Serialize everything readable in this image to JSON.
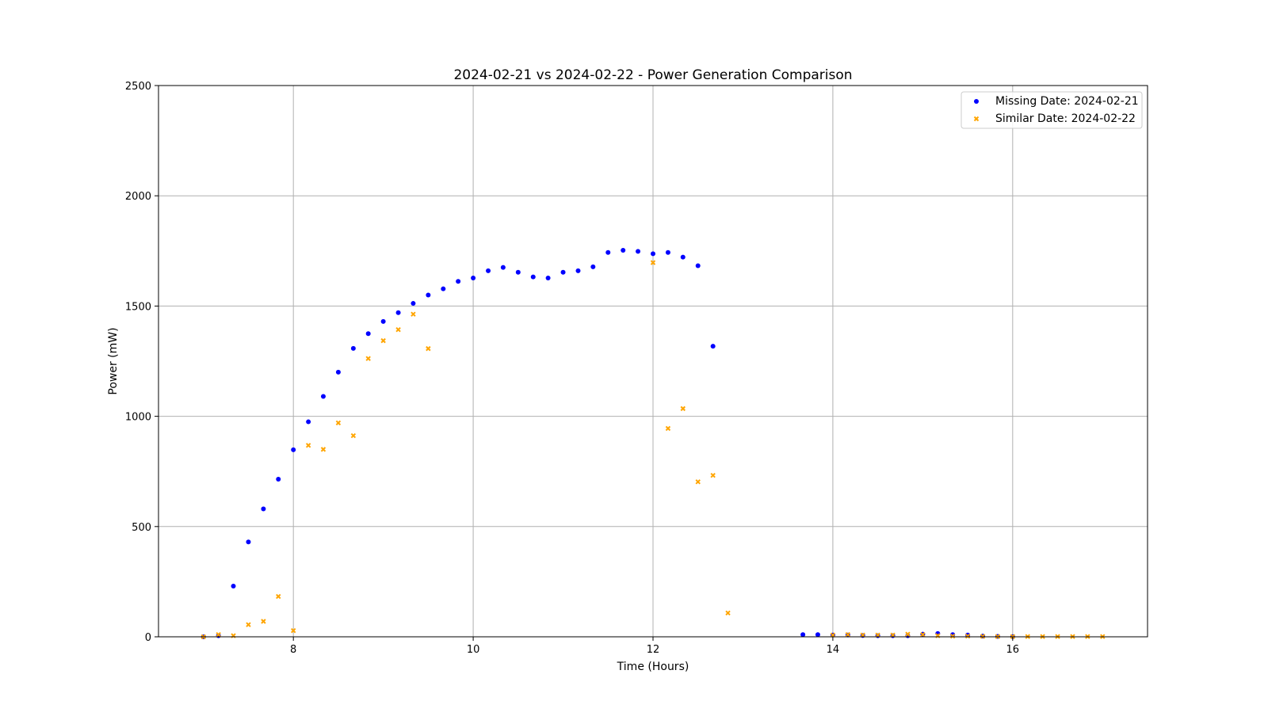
{
  "chart_data": {
    "type": "scatter",
    "title": "2024-02-21 vs 2024-02-22 - Power Generation Comparison",
    "xlabel": "Time (Hours)",
    "ylabel": "Power (mW)",
    "xlim": [
      6.5,
      17.5
    ],
    "ylim": [
      0,
      2500
    ],
    "xticks": [
      8,
      10,
      12,
      14,
      16
    ],
    "yticks": [
      0,
      500,
      1000,
      1500,
      2000,
      2500
    ],
    "grid": true,
    "legend_position": "top-right",
    "series": [
      {
        "name": "Missing Date: 2024-02-21",
        "color": "#0000ff",
        "marker": "circle",
        "x": [
          7.0,
          7.167,
          7.333,
          7.5,
          7.667,
          7.833,
          8.0,
          8.167,
          8.333,
          8.5,
          8.667,
          8.833,
          9.0,
          9.167,
          9.333,
          9.5,
          9.667,
          9.833,
          10.0,
          10.167,
          10.333,
          10.5,
          10.667,
          10.833,
          11.0,
          11.167,
          11.333,
          11.5,
          11.667,
          11.833,
          12.0,
          12.167,
          12.333,
          12.5,
          12.667,
          13.667,
          13.833,
          14.0,
          14.167,
          14.333,
          14.5,
          14.667,
          14.833,
          15.0,
          15.167,
          15.333,
          15.5,
          15.667,
          15.833,
          16.0
        ],
        "y": [
          0,
          5,
          230,
          430,
          580,
          715,
          848,
          975,
          1090,
          1200,
          1308,
          1375,
          1430,
          1470,
          1512,
          1550,
          1578,
          1612,
          1627,
          1660,
          1675,
          1653,
          1632,
          1627,
          1653,
          1660,
          1678,
          1743,
          1753,
          1748,
          1737,
          1743,
          1722,
          1683,
          1318,
          10,
          10,
          8,
          8,
          6,
          5,
          5,
          5,
          12,
          15,
          10,
          8,
          3,
          2,
          1
        ]
      },
      {
        "name": "Similar Date: 2024-02-22",
        "color": "#ffa500",
        "marker": "x",
        "x": [
          7.0,
          7.167,
          7.333,
          7.5,
          7.667,
          7.833,
          8.0,
          8.167,
          8.333,
          8.5,
          8.667,
          8.833,
          9.0,
          9.167,
          9.333,
          9.5,
          12.0,
          12.167,
          12.333,
          12.5,
          12.667,
          12.833,
          14.0,
          14.167,
          14.333,
          14.5,
          14.667,
          14.833,
          15.0,
          15.167,
          15.333,
          15.5,
          15.667,
          15.833,
          16.0,
          16.167,
          16.333,
          16.5,
          16.667,
          16.833,
          17.0
        ],
        "y": [
          0,
          10,
          5,
          55,
          70,
          183,
          28,
          868,
          850,
          970,
          912,
          1262,
          1343,
          1393,
          1463,
          1307,
          1697,
          945,
          1035,
          703,
          732,
          108,
          8,
          10,
          8,
          8,
          8,
          12,
          10,
          5,
          3,
          3,
          2,
          1,
          1,
          1,
          1,
          1,
          1,
          1,
          1
        ]
      }
    ]
  }
}
